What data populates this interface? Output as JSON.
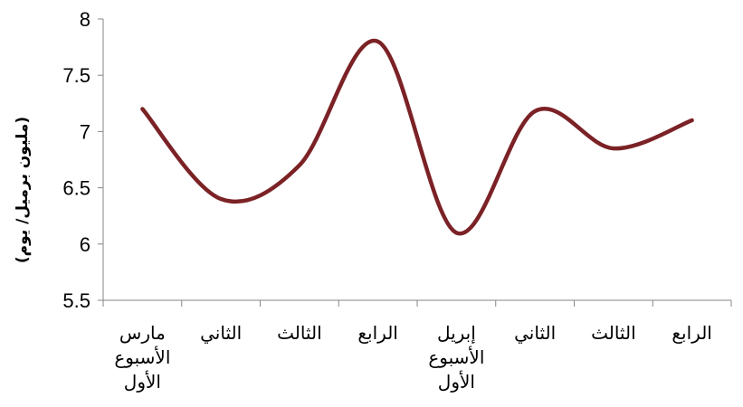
{
  "chart_data": {
    "type": "line",
    "title": "",
    "xlabel": "",
    "ylabel": "(مليون برميل/ يوم)",
    "ylim": [
      5.5,
      8
    ],
    "yticks": [
      "5.5",
      "6",
      "6.5",
      "7",
      "7.5",
      "8"
    ],
    "grid": false,
    "legend": "none",
    "categories": [
      [
        "مارس",
        "الأسبوع",
        "الأول"
      ],
      [
        "الثاني"
      ],
      [
        "الثالث"
      ],
      [
        "الرابع"
      ],
      [
        "إبريل",
        "الأسبوع",
        "الأول"
      ],
      [
        "الثاني"
      ],
      [
        "الثالث"
      ],
      [
        "الرابع"
      ]
    ],
    "series": [
      {
        "values": [
          7.2,
          6.4,
          6.7,
          7.8,
          6.1,
          7.18,
          6.85,
          7.1
        ],
        "color": "#7B2226",
        "smooth": true
      }
    ]
  }
}
